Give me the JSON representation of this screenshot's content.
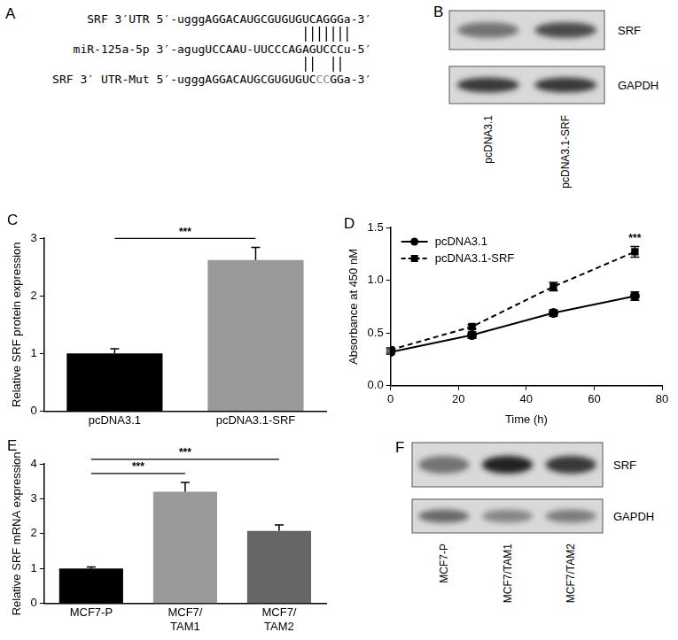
{
  "panels": [
    {
      "panel": "A",
      "type": "sequence_alignment",
      "lines": [
        {
          "label": "SRF 3′UTR",
          "start": "5′-",
          "sequence": "ugggAGGACAUGCGUGUGUCAGGGa",
          "end": "-3′",
          "highlight": []
        },
        {
          "label": "miR-125a-5p",
          "start": "3′-",
          "sequence": "agugUCCAAU-UUCCCAGAGUCCCu",
          "end": "-5′",
          "highlight": []
        },
        {
          "label": "SRF 3′ UTR-Mut",
          "start": "5′-",
          "sequence": "ugggAGGACAUGCGUGUGUCCCGGa",
          "end": "-3′",
          "highlight": [
            20,
            21
          ]
        }
      ],
      "pairs": [
        {
          "between": [
            0,
            1
          ],
          "columns": [
            18,
            19,
            20,
            21,
            22,
            23,
            24
          ]
        },
        {
          "between": [
            1,
            2
          ],
          "columns": [
            18,
            19,
            22,
            23
          ]
        }
      ]
    },
    {
      "panel": "B",
      "type": "western_blot",
      "lanes": [
        "pcDNA3.1",
        "pcDNA3.1-SRF"
      ],
      "rows": [
        {
          "name": "SRF",
          "intensity": [
            0.55,
            0.75
          ]
        },
        {
          "name": "GAPDH",
          "intensity": [
            0.85,
            0.85
          ]
        }
      ]
    },
    {
      "panel": "F",
      "type": "western_blot",
      "lanes": [
        "MCF7-P",
        "MCF7/TAM1",
        "MCF7/TAM2"
      ],
      "rows": [
        {
          "name": "SRF",
          "intensity": [
            0.55,
            0.95,
            0.85
          ]
        },
        {
          "name": "GAPDH",
          "intensity": [
            0.6,
            0.45,
            0.5
          ]
        }
      ]
    }
  ],
  "chart_data": [
    {
      "panel": "C",
      "type": "bar",
      "categories": [
        "pcDNA3.1",
        "pcDNA3.1-SRF"
      ],
      "values": [
        1.0,
        2.62
      ],
      "errors": [
        0.08,
        0.22
      ],
      "colors": [
        "#000000",
        "#999999"
      ],
      "ylabel": "Relative SRF protein expression",
      "ylim": [
        0,
        3
      ],
      "yticks": [
        0,
        1,
        2,
        3
      ],
      "grid": false,
      "annotations": [
        {
          "text": "***",
          "from": "pcDNA3.1",
          "to": "pcDNA3.1-SRF"
        }
      ]
    },
    {
      "panel": "D",
      "type": "line",
      "x": [
        0,
        24,
        48,
        72
      ],
      "series": [
        {
          "name": "pcDNA3.1",
          "color": "#000000",
          "values": [
            0.32,
            0.48,
            0.69,
            0.85
          ],
          "errors": [
            0.02,
            0.03,
            0.03,
            0.04
          ],
          "marker": "circle",
          "line_style": "solid"
        },
        {
          "name": "pcDNA3.1-SRF",
          "color": "#000000",
          "values": [
            0.34,
            0.56,
            0.94,
            1.27
          ],
          "errors": [
            0.02,
            0.02,
            0.04,
            0.05
          ],
          "marker": "square",
          "line_style": "dashed"
        }
      ],
      "xlabel": "Time (h)",
      "ylabel": "Absorbance at 450 nM",
      "xlim": [
        0,
        80
      ],
      "xticks": [
        0,
        20,
        40,
        60,
        80
      ],
      "ylim": [
        0,
        1.5
      ],
      "yticks": [
        {
          "value": 0,
          "label": "0.0"
        },
        {
          "value": 0.5,
          "label": "0.5"
        },
        {
          "value": 1,
          "label": "1.0"
        },
        {
          "value": 1.5,
          "label": "1.5"
        }
      ],
      "grid": false,
      "legend": "upper left",
      "annotations": [
        {
          "text": "***",
          "x": 72,
          "series": "pcDNA3.1-SRF"
        }
      ]
    },
    {
      "panel": "E",
      "type": "bar",
      "categories": [
        "MCF7-P",
        "MCF7/\nTAM1",
        "MCF7/\nTAM2"
      ],
      "values": [
        1.0,
        3.2,
        2.08
      ],
      "errors": [
        0.05,
        0.27,
        0.17
      ],
      "colors": [
        "#000000",
        "#999999",
        "#666666"
      ],
      "ylabel": "Relative SRF mRNA expression",
      "ylim": [
        0,
        4
      ],
      "yticks": [
        0,
        1,
        2,
        3,
        4
      ],
      "grid": false,
      "annotations": [
        {
          "text": "***",
          "from": "MCF7-P",
          "to": "MCF7/\nTAM1"
        },
        {
          "text": "***",
          "from": "MCF7-P",
          "to": "MCF7/\nTAM2"
        }
      ]
    }
  ]
}
